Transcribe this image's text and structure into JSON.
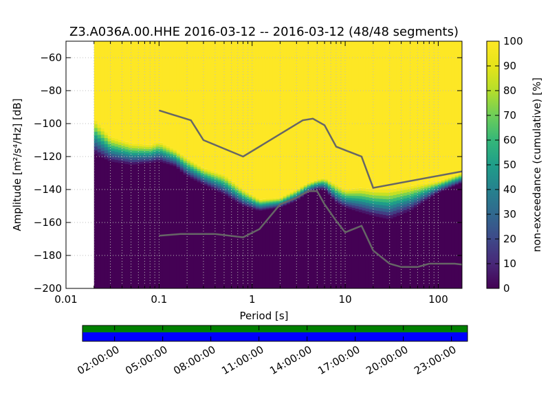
{
  "chart_data": [
    {
      "type": "heatmap",
      "title": "Z3.A036A.00.HHE   2016-03-12 -- 2016-03-12  (48/48 segments)",
      "xlabel": "Period [s]",
      "ylabel": "Amplitude [m²/s⁴/Hz] [dB]",
      "xscale": "log",
      "xlim": [
        0.01,
        180
      ],
      "ylim": [
        -200,
        -50
      ],
      "x_ticks": [
        {
          "value": 0.01,
          "label": "0.01"
        },
        {
          "value": 0.1,
          "label": "0.1"
        },
        {
          "value": 1,
          "label": "1"
        },
        {
          "value": 10,
          "label": "10"
        },
        {
          "value": 100,
          "label": "100"
        }
      ],
      "y_ticks": [
        {
          "value": -60,
          "label": "−60"
        },
        {
          "value": -80,
          "label": "−80"
        },
        {
          "value": -100,
          "label": "−100"
        },
        {
          "value": -120,
          "label": "−120"
        },
        {
          "value": -140,
          "label": "−140"
        },
        {
          "value": -160,
          "label": "−160"
        },
        {
          "value": -180,
          "label": "−180"
        },
        {
          "value": -200,
          "label": "−200"
        }
      ],
      "grid": true,
      "data_min_period": 0.02,
      "colorbar": {
        "label": "non-exceedance (cumulative) [%]",
        "range": [
          0,
          100
        ],
        "ticks": [
          "0",
          "10",
          "20",
          "30",
          "40",
          "50",
          "60",
          "70",
          "80",
          "90",
          "100"
        ],
        "colormap": "viridis"
      },
      "noise_band": {
        "x": [
          0.02,
          0.03,
          0.05,
          0.08,
          0.1,
          0.15,
          0.2,
          0.3,
          0.5,
          0.8,
          1.2,
          2,
          3,
          4,
          5,
          6,
          8,
          10,
          15,
          20,
          30,
          50,
          100,
          180
        ],
        "upper": [
          -97,
          -108,
          -112,
          -113,
          -111,
          -116,
          -121,
          -127,
          -131,
          -140,
          -146,
          -145,
          -140,
          -136,
          -134,
          -133,
          -137,
          -140,
          -139,
          -140,
          -140,
          -138,
          -135,
          -130
        ],
        "lower": [
          -118,
          -123,
          -125,
          -124,
          -123,
          -126,
          -132,
          -137,
          -143,
          -150,
          -153,
          -151,
          -147,
          -142,
          -140,
          -140,
          -148,
          -151,
          -154,
          -156,
          -158,
          -153,
          -142,
          -136
        ]
      },
      "series": [
        {
          "x": [
            0.1,
            0.22,
            0.3,
            0.8,
            3.5,
            4.5,
            6,
            8,
            15,
            20,
            180
          ],
          "y": [
            -92,
            -98,
            -110,
            -120,
            -98,
            -97,
            -101,
            -114,
            -120,
            -139,
            -129
          ]
        },
        {
          "x": [
            0.1,
            0.17,
            0.4,
            0.8,
            1.2,
            2,
            3,
            4,
            5,
            6,
            8,
            10,
            15,
            20,
            30,
            40,
            60,
            80,
            100,
            150,
            180
          ],
          "y": [
            -168,
            -167,
            -167,
            -169,
            -164,
            -149,
            -145,
            -141,
            -141,
            -149,
            -159,
            -166,
            -162,
            -177,
            -185,
            -187,
            -187,
            -185,
            -185,
            -185,
            -185.5
          ]
        }
      ]
    },
    {
      "type": "timeline",
      "tick_labels": [
        "02:00:00",
        "05:00:00",
        "08:00:00",
        "11:00:00",
        "14:00:00",
        "17:00:00",
        "20:00:00",
        "23:00:00"
      ],
      "bands": [
        {
          "color": "#008000"
        },
        {
          "color": "#0000ff"
        }
      ]
    }
  ],
  "colors": {
    "curve": "#666666",
    "data_start": "#440154",
    "data_end": "#fde725"
  }
}
